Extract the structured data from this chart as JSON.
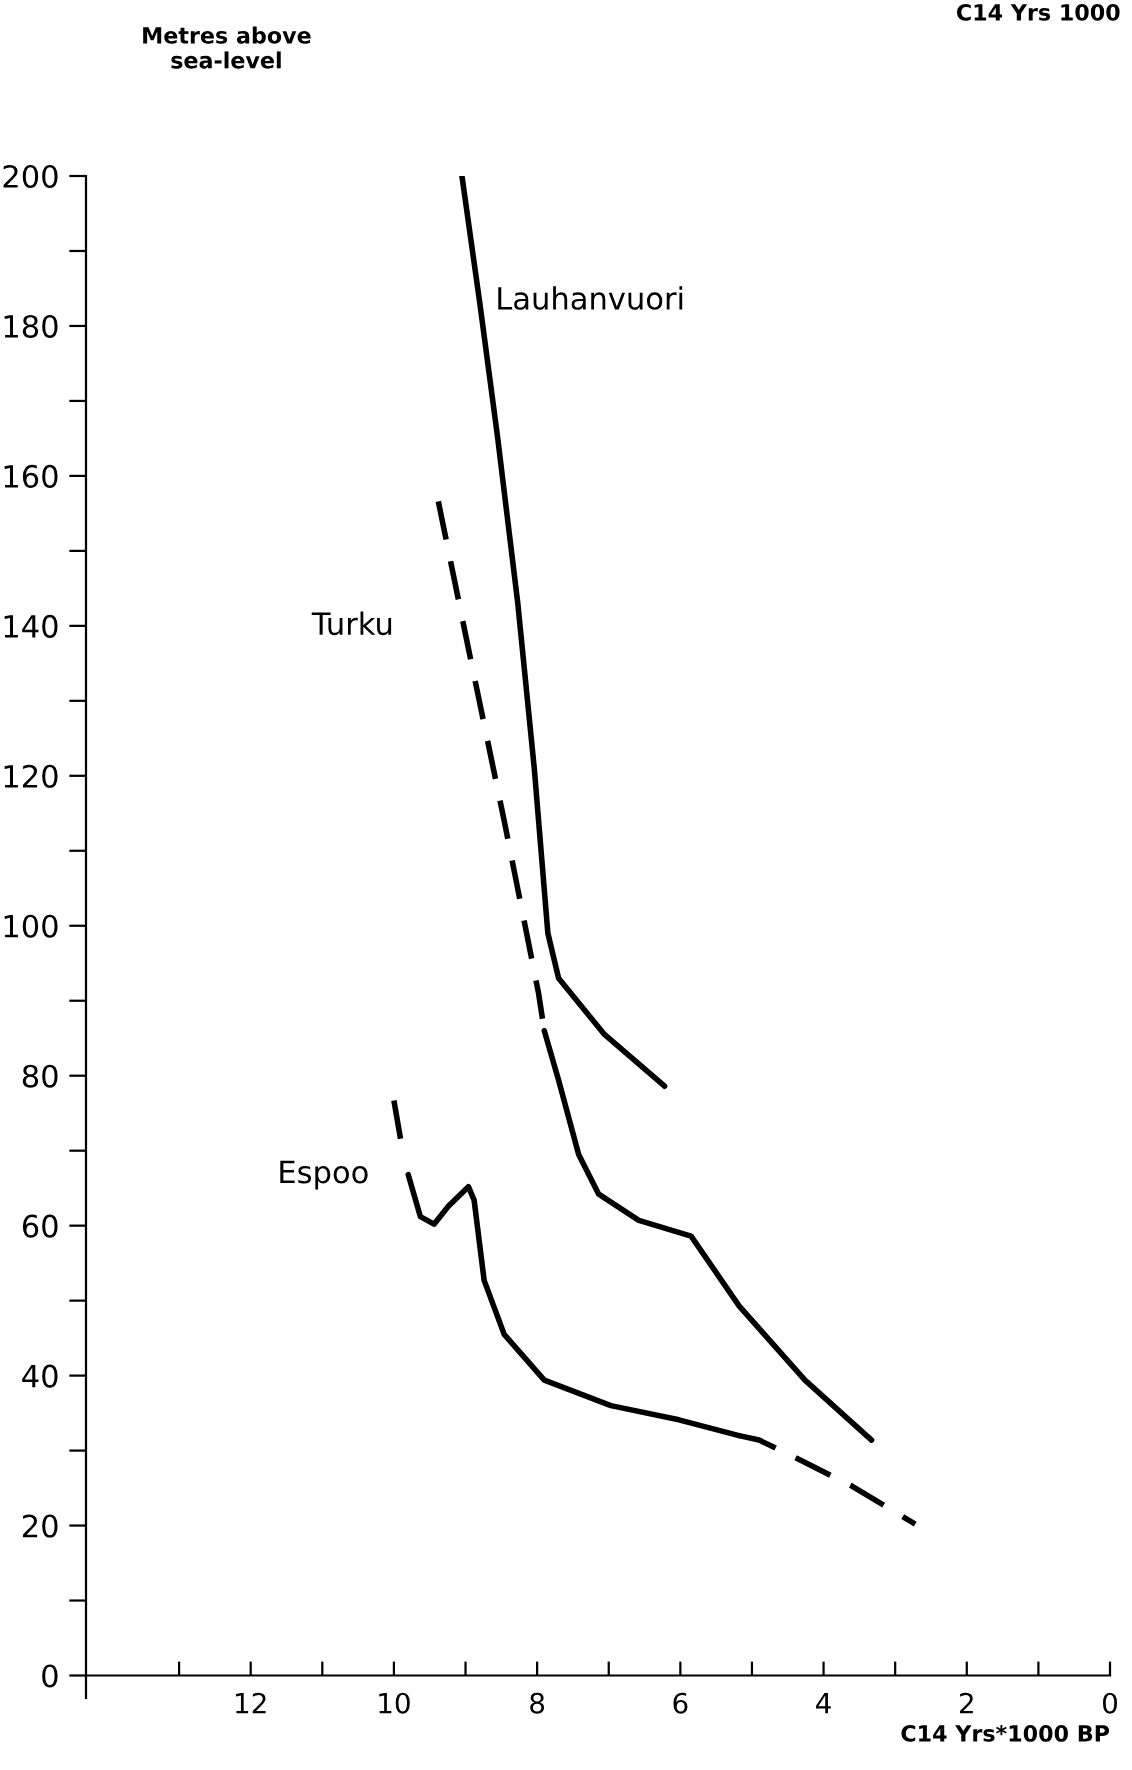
{
  "chart_data": {
    "type": "line",
    "ylabel": "Metres above\nsea-level",
    "xlabel": "C14 Yrs*1000 BP",
    "annotations": [
      "C14 Yrs 1000"
    ],
    "xlim": [
      14.3,
      0
    ],
    "ylim": [
      -3,
      200
    ],
    "xticks": [
      {
        "value": 13,
        "label": null
      },
      12,
      {
        "value": 11,
        "label": null
      },
      10,
      {
        "value": 9,
        "label": null
      },
      8,
      {
        "value": 7,
        "label": null
      },
      6,
      {
        "value": 5,
        "label": null
      },
      4,
      {
        "value": 3,
        "label": null
      },
      2,
      {
        "value": 1,
        "label": null
      },
      0
    ],
    "yticks": [
      0,
      {
        "value": 10,
        "label": null
      },
      20,
      {
        "value": 30,
        "label": null
      },
      40,
      {
        "value": 50,
        "label": null
      },
      60,
      {
        "value": 70,
        "label": null
      },
      80,
      {
        "value": 90,
        "label": null
      },
      100,
      {
        "value": 110,
        "label": null
      },
      120,
      {
        "value": 130,
        "label": null
      },
      140,
      {
        "value": 150,
        "label": null
      },
      160,
      {
        "value": 170,
        "label": null
      },
      180,
      {
        "value": 190,
        "label": null
      },
      200
    ],
    "grid": false,
    "legend": false,
    "marker": "none",
    "series": [
      {
        "name": "Lauhanvuori",
        "color": "#000000",
        "line_style": "solid",
        "x": [
          9.05,
          8.8,
          8.55,
          8.27,
          8.04,
          7.85,
          7.7,
          7.06,
          6.22
        ],
        "values": [
          200,
          183,
          165,
          143,
          121,
          99,
          93,
          85.5,
          78.6
        ]
      },
      {
        "name": "Turku",
        "color": "#000000",
        "line_style": "dashed",
        "x": [
          9.38,
          8.96,
          8.46,
          7.98,
          7.9
        ],
        "values": [
          156.6,
          137,
          114,
          91,
          86
        ]
      },
      {
        "color": "#000000",
        "line_style": "solid",
        "x": [
          7.9,
          7.7,
          7.42,
          7.14,
          6.58,
          5.85,
          5.18,
          4.26,
          3.33
        ],
        "values": [
          86,
          79.4,
          69.5,
          64.2,
          60.7,
          58.6,
          49.3,
          39.4,
          31.4
        ]
      },
      {
        "color": "#000000",
        "line_style": "dashed",
        "x": [
          10.0,
          9.89
        ],
        "values": [
          76.7,
          70.6
        ]
      },
      {
        "name": "Espoo",
        "color": "#000000",
        "line_style": "solid",
        "x": [
          9.8,
          9.63,
          9.44,
          9.24,
          8.96,
          8.88,
          8.74,
          8.46,
          7.9,
          6.97,
          6.02,
          5.18
        ],
        "values": [
          66.8,
          61.2,
          60.2,
          62.6,
          65.2,
          63.4,
          52.7,
          45.5,
          39.4,
          36,
          34.1,
          32
        ]
      },
      {
        "color": "#000000",
        "line_style": "dashed",
        "x": [
          5.18,
          4.9,
          4.34,
          3.61,
          2.72
        ],
        "values": [
          32,
          31.4,
          28.8,
          25.3,
          20.2
        ]
      }
    ]
  }
}
